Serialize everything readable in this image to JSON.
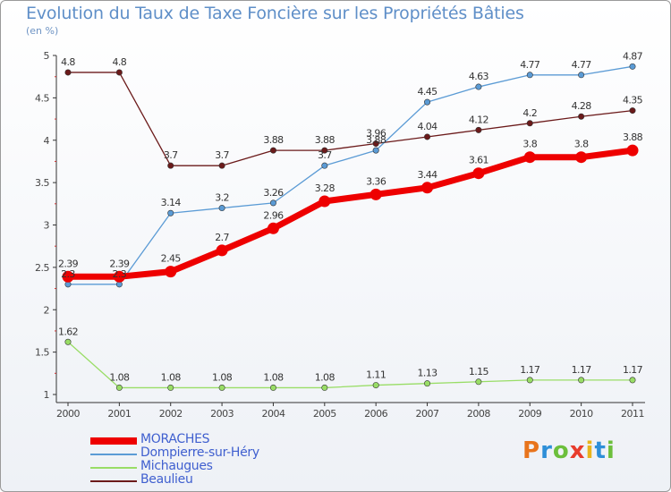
{
  "page": {
    "title": "Evolution du Taux de Taxe Foncière sur les Propriétés Bâties",
    "unit": "(en %)"
  },
  "brand": {
    "letters": [
      "P",
      "r",
      "o",
      "x",
      "i",
      "t",
      "i"
    ],
    "colors": [
      "#e8741c",
      "#2e8fd8",
      "#6cbf3c",
      "#e83c2c",
      "#e8b41c",
      "#2e8fd8",
      "#6cbf3c"
    ]
  },
  "chart_data": {
    "type": "line",
    "title": "Evolution du Taux de Taxe Foncière sur les Propriétés Bâties",
    "ylabel": "(en %)",
    "xlabel": "",
    "x": [
      "2000",
      "2001",
      "2002",
      "2003",
      "2004",
      "2005",
      "2006",
      "2007",
      "2008",
      "2009",
      "2010",
      "2011"
    ],
    "ylim": [
      1,
      5
    ],
    "yticks": [
      1,
      1.5,
      2,
      2.5,
      3,
      3.5,
      4,
      4.5,
      5
    ],
    "ytick_labels": [
      "1",
      "1.5",
      "2",
      "2.5",
      "3",
      "3.5",
      "4",
      "4.5",
      "5"
    ],
    "series": [
      {
        "name": "Beaulieu",
        "color": "#6b1a1a",
        "values": [
          4.8,
          4.8,
          3.7,
          3.7,
          3.88,
          3.88,
          3.96,
          4.04,
          4.12,
          4.2,
          4.28,
          4.35
        ],
        "labels": [
          "4.8",
          "4.8",
          "3.7",
          "3.7",
          "3.88",
          "3.88",
          "3.96",
          "4.04",
          "4.12",
          "4.2",
          "4.28",
          "4.35"
        ]
      },
      {
        "name": "Dompierre-sur-Héry",
        "color": "#5b9bd5",
        "values": [
          2.3,
          2.3,
          3.14,
          3.2,
          3.26,
          3.7,
          3.88,
          4.45,
          4.63,
          4.77,
          4.77,
          4.87
        ],
        "labels": [
          "2.3",
          "2.3",
          "3.14",
          "3.2",
          "3.26",
          "3.7",
          "3.88",
          "4.45",
          "4.63",
          "4.77",
          "4.77",
          "4.87"
        ]
      },
      {
        "name": "Michaugues",
        "color": "#99dd66",
        "values": [
          1.62,
          1.08,
          1.08,
          1.08,
          1.08,
          1.08,
          1.11,
          1.13,
          1.15,
          1.17,
          1.17,
          1.17
        ],
        "labels": [
          "1.62",
          "1.08",
          "1.08",
          "1.08",
          "1.08",
          "1.08",
          "1.11",
          "1.13",
          "1.15",
          "1.17",
          "1.17",
          "1.17"
        ]
      },
      {
        "name": "MORACHES",
        "color": "#ee0000",
        "values": [
          2.39,
          2.39,
          2.45,
          2.7,
          2.96,
          3.28,
          3.36,
          3.44,
          3.61,
          3.8,
          3.8,
          3.88
        ],
        "labels": [
          "2.39",
          "2.39",
          "2.45",
          "2.7",
          "2.96",
          "3.28",
          "3.36",
          "3.44",
          "3.61",
          "3.8",
          "3.8",
          "3.88"
        ]
      }
    ],
    "legend": [
      "MORACHES",
      "Dompierre-sur-Héry",
      "Michaugues",
      "Beaulieu"
    ],
    "legend_position": "bottom-left"
  }
}
